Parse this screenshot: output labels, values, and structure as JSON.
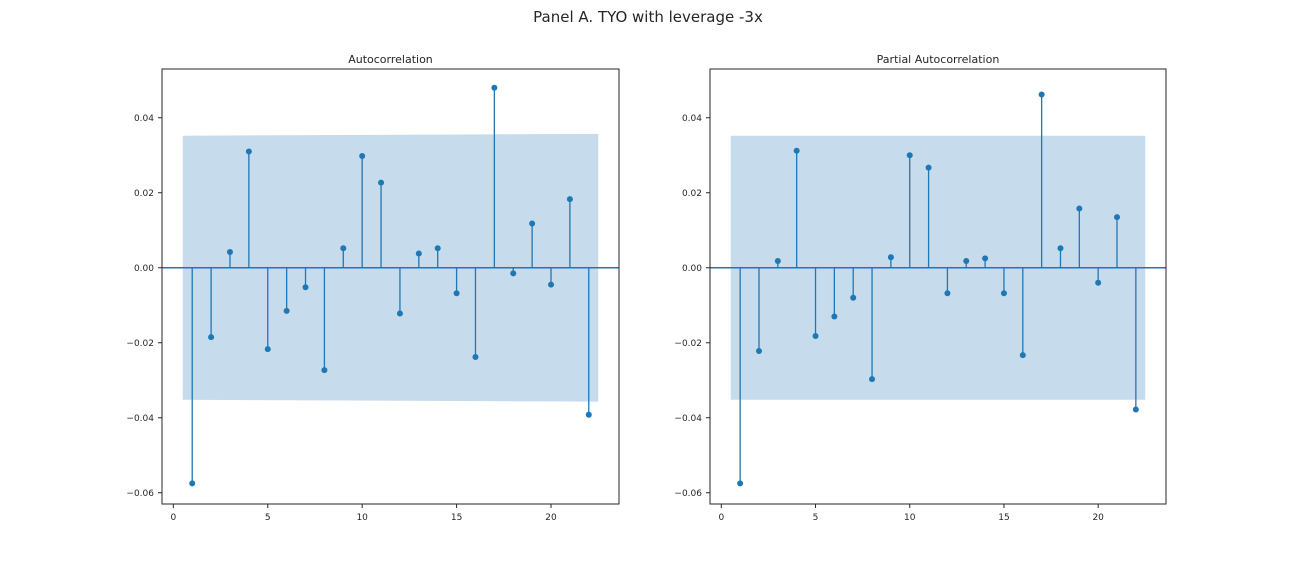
{
  "figure": {
    "suptitle": "Panel A. TYO with leverage -3x"
  },
  "colors": {
    "stem": "#1f77b4",
    "band": "#c6dbec",
    "axes": "#262626",
    "background": "#ffffff"
  },
  "chart_data": [
    {
      "type": "stem",
      "title": "Autocorrelation",
      "xlabel": "",
      "ylabel": "",
      "xlim": [
        -0.6,
        23.6
      ],
      "ylim": [
        -0.063,
        0.053
      ],
      "xticks": [
        0,
        5,
        10,
        15,
        20
      ],
      "yticks": [
        -0.06,
        -0.04,
        -0.02,
        0.0,
        0.02,
        0.04
      ],
      "ytick_labels": [
        "−0.06",
        "−0.04",
        "−0.02",
        "0.00",
        "0.02",
        "0.04"
      ],
      "confidence_band": {
        "x": [
          0.5,
          22.5
        ],
        "upper": [
          0.0352,
          0.0357
        ],
        "lower": [
          -0.0352,
          -0.0357
        ]
      },
      "lags": [
        1,
        2,
        3,
        4,
        5,
        6,
        7,
        8,
        9,
        10,
        11,
        12,
        13,
        14,
        15,
        16,
        17,
        18,
        19,
        20,
        21,
        22
      ],
      "values": [
        -0.0575,
        -0.0185,
        0.0042,
        0.031,
        -0.0217,
        -0.0115,
        -0.0052,
        -0.0273,
        0.0052,
        0.0298,
        0.0227,
        -0.0122,
        0.0038,
        0.0052,
        -0.0068,
        -0.0238,
        0.048,
        -0.0015,
        0.0118,
        -0.0045,
        0.0183,
        -0.0392
      ],
      "grid": false
    },
    {
      "type": "stem",
      "title": "Partial Autocorrelation",
      "xlabel": "",
      "ylabel": "",
      "xlim": [
        -0.6,
        23.6
      ],
      "ylim": [
        -0.063,
        0.053
      ],
      "xticks": [
        0,
        5,
        10,
        15,
        20
      ],
      "yticks": [
        -0.06,
        -0.04,
        -0.02,
        0.0,
        0.02,
        0.04
      ],
      "ytick_labels": [
        "−0.06",
        "−0.04",
        "−0.02",
        "0.00",
        "0.02",
        "0.04"
      ],
      "confidence_band": {
        "x": [
          0.5,
          22.5
        ],
        "upper": [
          0.0352,
          0.0352
        ],
        "lower": [
          -0.0352,
          -0.0352
        ]
      },
      "lags": [
        1,
        2,
        3,
        4,
        5,
        6,
        7,
        8,
        9,
        10,
        11,
        12,
        13,
        14,
        15,
        16,
        17,
        18,
        19,
        20,
        21,
        22
      ],
      "values": [
        -0.0575,
        -0.0222,
        0.0018,
        0.0312,
        -0.0182,
        -0.013,
        -0.008,
        -0.0297,
        0.0028,
        0.03,
        0.0267,
        -0.0068,
        0.0018,
        0.0025,
        -0.0068,
        -0.0233,
        0.0462,
        0.0052,
        0.0158,
        -0.004,
        0.0135,
        -0.0378
      ],
      "grid": false
    }
  ]
}
